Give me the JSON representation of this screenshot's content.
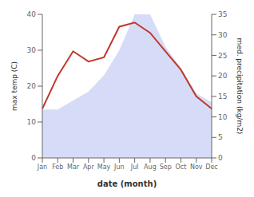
{
  "chart_data": {
    "type": "area",
    "categories": [
      "Jan",
      "Feb",
      "Mar",
      "Apr",
      "May",
      "Jun",
      "Jul",
      "Aug",
      "Sep",
      "Oct",
      "Nov",
      "Dec"
    ],
    "series": [
      {
        "type": "area",
        "color": "#c8d0f5",
        "values": [
          13.5,
          13.5,
          16.0,
          18.5,
          23.0,
          30.0,
          40.0,
          40.0,
          31.0,
          25.0,
          18.0,
          15.5
        ]
      },
      {
        "type": "line",
        "color": "#c0392b",
        "axis": "y2",
        "values": [
          12.0,
          20.0,
          26.0,
          23.5,
          24.5,
          32.0,
          33.0,
          30.5,
          26.0,
          21.5,
          15.0,
          12.0
        ]
      }
    ],
    "xlabel": "date (month)",
    "ylabel": "max temp (C)",
    "y2label": "med. precipitation (kg/m2)",
    "ylim": [
      0,
      40
    ],
    "yticks": [
      0,
      10,
      20,
      30,
      40
    ],
    "y2lim": [
      0,
      35
    ],
    "y2ticks": [
      0,
      5,
      10,
      15,
      20,
      25,
      30,
      35
    ],
    "grid": false
  }
}
